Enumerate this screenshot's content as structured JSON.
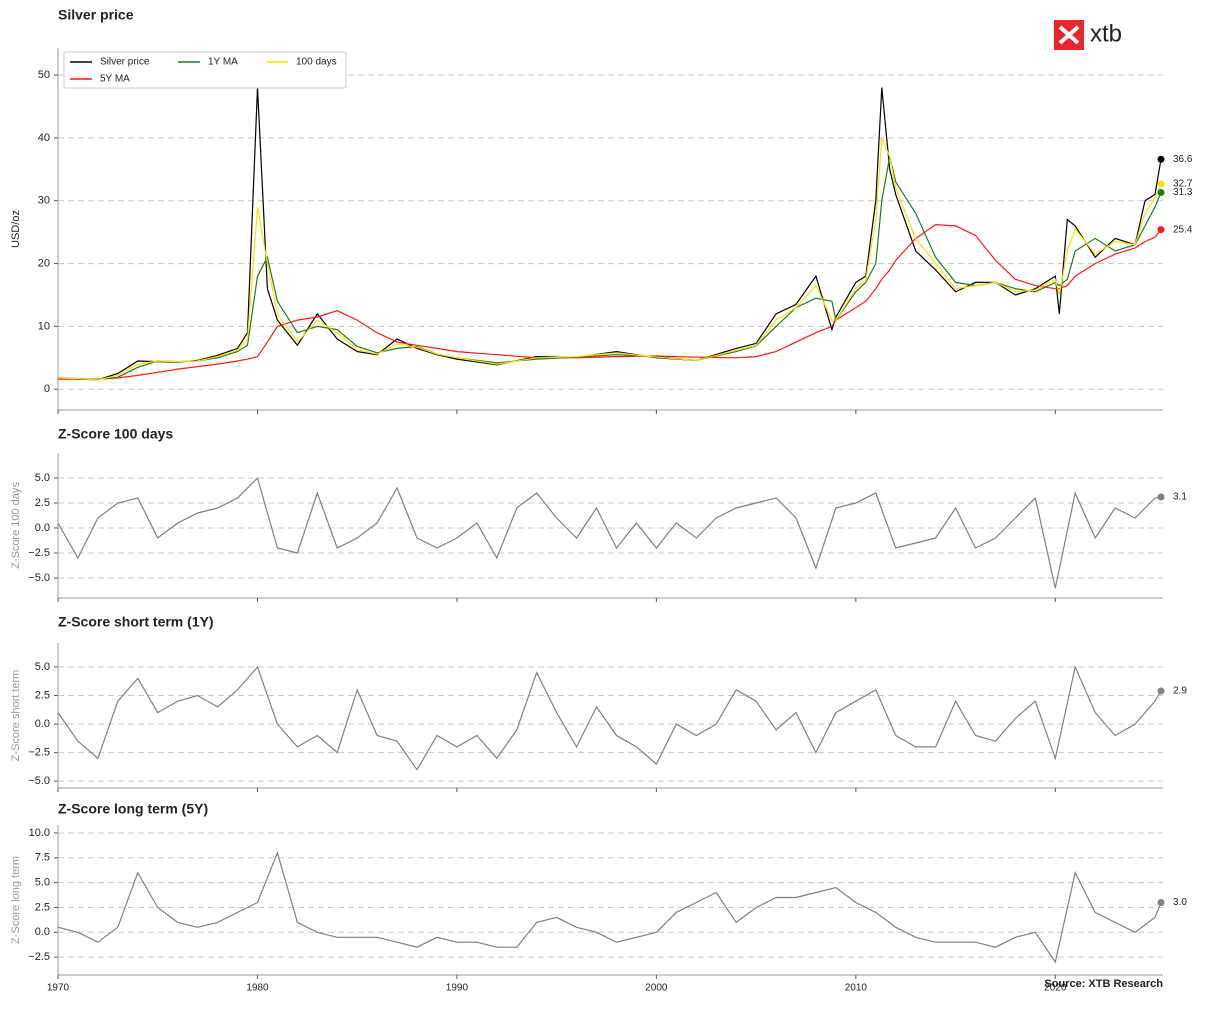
{
  "logo": "xtb",
  "source": "Source: XTB Research",
  "chart_data": [
    {
      "type": "line",
      "title": "Silver price",
      "ylabel": "USD/oz",
      "legend": "upper left",
      "grid": true,
      "xlim": [
        1970,
        2025.4
      ],
      "ylim": [
        -3.3,
        54.3
      ],
      "yticks": [
        0,
        10,
        20,
        30,
        40,
        50
      ],
      "x": [
        1970,
        1971,
        1972,
        1973,
        1974,
        1975,
        1976,
        1977,
        1978,
        1979,
        1979.5,
        1980,
        1980.5,
        1981,
        1982,
        1983,
        1984,
        1985,
        1986,
        1987,
        1988,
        1989,
        1990,
        1992,
        1994,
        1996,
        1998,
        2000,
        2002,
        2004,
        2005,
        2006,
        2007,
        2008,
        2008.8,
        2009,
        2010,
        2010.5,
        2011,
        2011.3,
        2011.7,
        2012,
        2013,
        2014,
        2015,
        2016,
        2017,
        2018,
        2019,
        2020,
        2020.2,
        2020.6,
        2021,
        2022,
        2023,
        2024,
        2024.5,
        2025,
        2025.3
      ],
      "series": [
        {
          "name": "Silver price",
          "color": "#000000",
          "values": [
            1.8,
            1.6,
            1.5,
            2.5,
            4.5,
            4.4,
            4.3,
            4.6,
            5.4,
            6.5,
            9,
            48,
            16,
            11,
            7,
            12,
            8,
            6,
            5.5,
            8,
            6.5,
            5.5,
            4.8,
            3.9,
            5.2,
            5.1,
            6,
            5,
            4.6,
            6.5,
            7.3,
            12,
            13.5,
            18,
            9.5,
            11.5,
            17,
            18,
            30,
            48,
            35,
            31,
            22,
            19,
            15.5,
            17,
            17,
            15,
            16,
            18,
            12,
            27,
            26,
            21,
            24,
            23,
            30,
            31,
            36.6
          ]
        },
        {
          "name": "5Y MA",
          "color": "#ff1a1a",
          "values": [
            1.6,
            1.6,
            1.6,
            1.8,
            2.2,
            2.7,
            3.2,
            3.6,
            4,
            4.5,
            4.8,
            5.2,
            7.5,
            10,
            11,
            11.5,
            12.5,
            11,
            9,
            7.5,
            7,
            6.5,
            6,
            5.5,
            5,
            5,
            5.2,
            5.3,
            5.1,
            5,
            5.2,
            6,
            7.5,
            9,
            10,
            11,
            13,
            14,
            16,
            17.5,
            19,
            20.5,
            24,
            26.2,
            26,
            24.5,
            20.5,
            17.5,
            16.5,
            16,
            16,
            16.5,
            18,
            20,
            21.5,
            22.5,
            23.5,
            24.2,
            25.4
          ]
        },
        {
          "name": "1Y MA",
          "color": "#1f7a1f",
          "values": [
            1.8,
            1.7,
            1.6,
            1.9,
            3.5,
            4.5,
            4.4,
            4.5,
            5,
            6,
            7,
            18,
            21,
            14,
            9,
            10,
            9.5,
            6.8,
            5.8,
            6.5,
            6.8,
            5.6,
            5,
            4.2,
            4.8,
            5.1,
            5.5,
            5.2,
            4.6,
            6,
            6.9,
            10,
            13,
            14.5,
            14,
            11,
            15.5,
            17,
            20,
            30,
            37,
            33,
            28,
            21,
            17,
            16.5,
            17,
            16,
            15.5,
            17,
            16.5,
            17.5,
            22,
            24,
            22,
            23,
            26,
            29,
            31.3
          ]
        },
        {
          "name": "100 days",
          "color": "#ffe000",
          "values": [
            1.8,
            1.7,
            1.5,
            2.2,
            4,
            4.5,
            4.4,
            4.5,
            5.2,
            6.2,
            8,
            29,
            20,
            12,
            7.5,
            11,
            9,
            6.3,
            5.6,
            7.2,
            6.7,
            5.6,
            5,
            4,
            5,
            5.2,
            5.8,
            5.1,
            4.6,
            6.2,
            7,
            11,
            13,
            16.5,
            11,
            11,
            16,
            17.5,
            27,
            40,
            37,
            32,
            24,
            20,
            16,
            16.5,
            17,
            15.5,
            15.8,
            17.5,
            15,
            22,
            25.5,
            21.5,
            23.5,
            23,
            28,
            30.5,
            32.7
          ]
        }
      ]
    },
    {
      "type": "line",
      "title": "Z-Score 100 days",
      "ylabel": "Z-Score 100 days",
      "grid": true,
      "xlim": [
        1970,
        2025.4
      ],
      "ylim": [
        -7,
        7.5
      ],
      "yticks": [
        {
          "value": -5,
          "label": "−5.0"
        },
        {
          "value": -2.5,
          "label": "−2.5"
        },
        {
          "value": 0,
          "label": "0.0"
        },
        {
          "value": 2.5,
          "label": "2.5"
        },
        {
          "value": 5,
          "label": "5.0"
        }
      ],
      "x": [
        1970,
        1971,
        1972,
        1973,
        1974,
        1975,
        1976,
        1977,
        1978,
        1979,
        1980,
        1981,
        1982,
        1983,
        1984,
        1985,
        1986,
        1987,
        1988,
        1989,
        1990,
        1991,
        1992,
        1993,
        1994,
        1995,
        1996,
        1997,
        1998,
        1999,
        2000,
        2001,
        2002,
        2003,
        2004,
        2005,
        2006,
        2007,
        2008,
        2009,
        2010,
        2011,
        2012,
        2013,
        2014,
        2015,
        2016,
        2017,
        2018,
        2019,
        2020,
        2021,
        2022,
        2023,
        2024,
        2025,
        2025.3
      ],
      "series": [
        {
          "name": "Z-Score 100 days",
          "color": "#808080",
          "values": [
            0.5,
            -3,
            1,
            2.5,
            3,
            -1,
            0.5,
            1.5,
            2,
            3,
            5,
            -2,
            -2.5,
            3.5,
            -2,
            -1,
            0.5,
            4,
            -1,
            -2,
            -1,
            0.5,
            -3,
            2,
            3.5,
            1,
            -1,
            2,
            -2,
            0.5,
            -2,
            0.5,
            -1,
            1,
            2,
            2.5,
            3,
            1,
            -4,
            2,
            2.5,
            3.5,
            -2,
            -1.5,
            -1,
            2,
            -2,
            -1,
            1,
            3,
            -6,
            3.5,
            -1,
            2,
            1,
            3,
            3.1
          ]
        }
      ]
    },
    {
      "type": "line",
      "title": "Z-Score short term (1Y)",
      "ylabel": "Z-Score short term",
      "grid": true,
      "xlim": [
        1970,
        2025.4
      ],
      "ylim": [
        -5.6,
        7.1
      ],
      "yticks": [
        {
          "value": -5,
          "label": "−5.0"
        },
        {
          "value": -2.5,
          "label": "−2.5"
        },
        {
          "value": 0,
          "label": "0.0"
        },
        {
          "value": 2.5,
          "label": "2.5"
        },
        {
          "value": 5,
          "label": "5.0"
        }
      ],
      "x": [
        1970,
        1971,
        1972,
        1973,
        1974,
        1975,
        1976,
        1977,
        1978,
        1979,
        1980,
        1981,
        1982,
        1983,
        1984,
        1985,
        1986,
        1987,
        1988,
        1989,
        1990,
        1991,
        1992,
        1993,
        1994,
        1995,
        1996,
        1997,
        1998,
        1999,
        2000,
        2001,
        2002,
        2003,
        2004,
        2005,
        2006,
        2007,
        2008,
        2009,
        2010,
        2011,
        2012,
        2013,
        2014,
        2015,
        2016,
        2017,
        2018,
        2019,
        2020,
        2021,
        2022,
        2023,
        2024,
        2025,
        2025.3
      ],
      "series": [
        {
          "name": "Z-Score short term (1Y)",
          "color": "#808080",
          "values": [
            1,
            -1.5,
            -3,
            2,
            4,
            1,
            2,
            2.5,
            1.5,
            3,
            5,
            0,
            -2,
            -1,
            -2.5,
            3,
            -1,
            -1.5,
            -4,
            -1,
            -2,
            -1,
            -3,
            -0.5,
            4.5,
            1,
            -2,
            1.5,
            -1,
            -2,
            -3.5,
            0,
            -1,
            0,
            3,
            2,
            -0.5,
            1,
            -2.5,
            1,
            2,
            3,
            -1,
            -2,
            -2,
            2,
            -1,
            -1.5,
            0.5,
            2,
            -3,
            5,
            1,
            -1,
            0,
            2,
            2.9
          ]
        }
      ]
    },
    {
      "type": "line",
      "title": "Z-Score long term (5Y)",
      "ylabel": "Z-Score long term",
      "grid": true,
      "xlim": [
        1970,
        2025.4
      ],
      "ylim": [
        -4.3,
        10.8
      ],
      "xticks": [
        1970,
        1980,
        1990,
        2000,
        2010,
        2020
      ],
      "yticks": [
        {
          "value": -2.5,
          "label": "−2.5"
        },
        {
          "value": 0,
          "label": "0.0"
        },
        {
          "value": 2.5,
          "label": "2.5"
        },
        {
          "value": 5,
          "label": "5.0"
        },
        {
          "value": 7.5,
          "label": "7.5"
        },
        {
          "value": 10,
          "label": "10.0"
        }
      ],
      "x": [
        1970,
        1971,
        1972,
        1973,
        1974,
        1975,
        1976,
        1977,
        1978,
        1979,
        1980,
        1981,
        1982,
        1983,
        1984,
        1985,
        1986,
        1987,
        1988,
        1989,
        1990,
        1991,
        1992,
        1993,
        1994,
        1995,
        1996,
        1997,
        1998,
        1999,
        2000,
        2001,
        2002,
        2003,
        2004,
        2005,
        2006,
        2007,
        2008,
        2009,
        2010,
        2011,
        2012,
        2013,
        2014,
        2015,
        2016,
        2017,
        2018,
        2019,
        2020,
        2021,
        2022,
        2023,
        2024,
        2025,
        2025.3
      ],
      "series": [
        {
          "name": "Z-Score long term (5Y)",
          "color": "#808080",
          "values": [
            0.5,
            0,
            -1,
            0.5,
            6,
            2.5,
            1,
            0.5,
            1,
            2,
            3,
            8,
            1,
            0,
            -0.5,
            -0.5,
            -0.5,
            -1,
            -1.5,
            -0.5,
            -1,
            -1,
            -1.5,
            -1.5,
            1,
            1.5,
            0.5,
            0,
            -1,
            -0.5,
            0,
            2,
            3,
            4,
            1,
            2.5,
            3.5,
            3.5,
            4,
            4.5,
            3,
            2,
            0.5,
            -0.5,
            -1,
            -1,
            -1,
            -1.5,
            -0.5,
            0,
            -3,
            6,
            2,
            1,
            0,
            1.5,
            3.0
          ],
          "value_labels": [
            null,
            null,
            null,
            null,
            null,
            null,
            null,
            null,
            null,
            null,
            null,
            null,
            null,
            null,
            null,
            null,
            null,
            null,
            null,
            null,
            null,
            null,
            null,
            null,
            null,
            null,
            null,
            null,
            null,
            null,
            null,
            null,
            null,
            null,
            null,
            null,
            null,
            null,
            null,
            null,
            null,
            null,
            null,
            null,
            null,
            null,
            null,
            null,
            null,
            null,
            null,
            null,
            null,
            null,
            null,
            null,
            "3.0"
          ]
        }
      ]
    }
  ]
}
